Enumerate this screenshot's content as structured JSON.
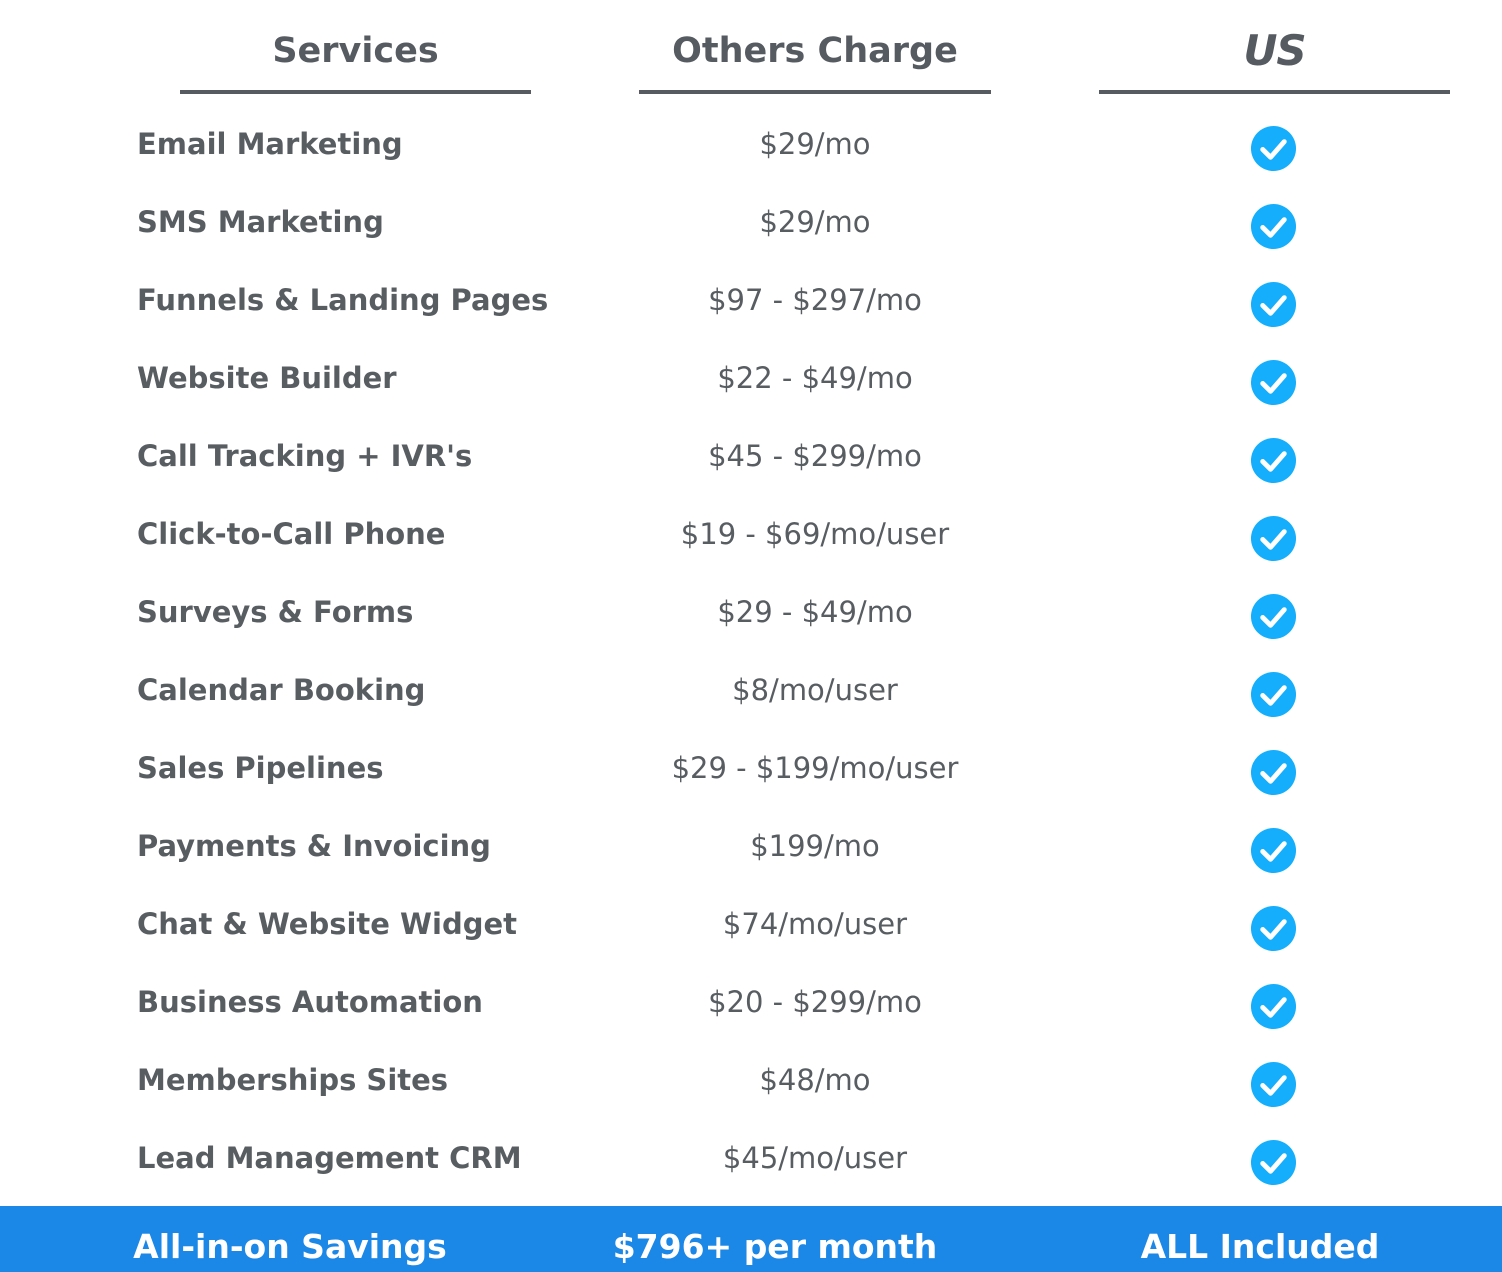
{
  "header": {
    "services": "Services",
    "others_charge": "Others Charge",
    "us": "US"
  },
  "rows": [
    {
      "service": "Email Marketing",
      "price": "$29/mo"
    },
    {
      "service": "SMS Marketing",
      "price": "$29/mo"
    },
    {
      "service": "Funnels & Landing Pages",
      "price": "$97 - $297/mo"
    },
    {
      "service": "Website Builder",
      "price": "$22 - $49/mo"
    },
    {
      "service": "Call Tracking + IVR's",
      "price": "$45 - $299/mo"
    },
    {
      "service": "Click-to-Call Phone",
      "price": "$19 - $69/mo/user"
    },
    {
      "service": "Surveys & Forms",
      "price": "$29 - $49/mo"
    },
    {
      "service": "Calendar Booking",
      "price": "$8/mo/user"
    },
    {
      "service": "Sales Pipelines",
      "price": "$29 - $199/mo/user"
    },
    {
      "service": "Payments & Invoicing",
      "price": "$199/mo"
    },
    {
      "service": "Chat & Website Widget",
      "price": "$74/mo/user"
    },
    {
      "service": "Business Automation",
      "price": "$20 - $299/mo"
    },
    {
      "service": "Memberships Sites",
      "price": "$48/mo"
    },
    {
      "service": "Lead Management CRM",
      "price": "$45/mo/user"
    }
  ],
  "footer": {
    "label": "All-in-on Savings",
    "total": "$796+ per month",
    "us": "ALL Included"
  },
  "colors": {
    "text": "#585d62",
    "check": "#14aefc",
    "footer_bg": "#1b87e6"
  },
  "icons": {
    "included": "check-circle-icon"
  }
}
